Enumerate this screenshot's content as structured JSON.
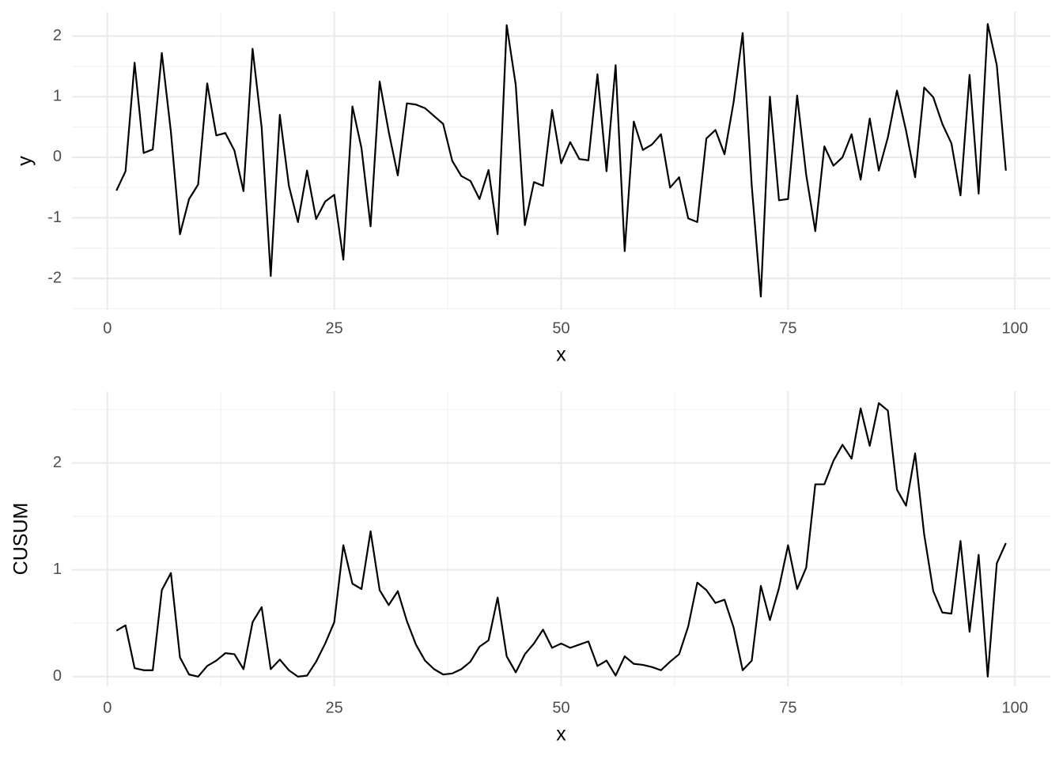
{
  "chart_data": [
    {
      "type": "line",
      "x_label": "x",
      "y_label": "y",
      "grid": true,
      "color": "#000000",
      "x": [
        1,
        2,
        3,
        4,
        5,
        6,
        7,
        8,
        9,
        10,
        11,
        12,
        13,
        14,
        15,
        16,
        17,
        18,
        19,
        20,
        21,
        22,
        23,
        24,
        25,
        26,
        27,
        28,
        29,
        30,
        31,
        32,
        33,
        34,
        35,
        36,
        37,
        38,
        39,
        40,
        41,
        42,
        43,
        44,
        45,
        46,
        47,
        48,
        49,
        50,
        51,
        52,
        53,
        54,
        55,
        56,
        57,
        58,
        59,
        60,
        61,
        62,
        63,
        64,
        65,
        66,
        67,
        68,
        69,
        70,
        71,
        72,
        73,
        74,
        75,
        76,
        77,
        78,
        79,
        80,
        81,
        82,
        83,
        84,
        85,
        86,
        87,
        88,
        89,
        90,
        91,
        92,
        93,
        94,
        95,
        96,
        97,
        98,
        99
      ],
      "values": [
        -0.55,
        -0.23,
        1.56,
        0.07,
        0.13,
        1.72,
        0.42,
        -1.27,
        -0.69,
        -0.45,
        1.22,
        0.36,
        0.4,
        0.11,
        -0.56,
        1.79,
        0.49,
        -1.96,
        0.7,
        -0.47,
        -1.07,
        -0.22,
        -1.02,
        -0.73,
        -0.62,
        -1.69,
        0.84,
        0.15,
        -1.14,
        1.25,
        0.42,
        -0.3,
        0.89,
        0.87,
        0.81,
        0.68,
        0.55,
        -0.06,
        -0.31,
        -0.39,
        -0.69,
        -0.21,
        -1.27,
        2.18,
        1.19,
        -1.12,
        -0.41,
        -0.47,
        0.78,
        -0.1,
        0.25,
        -0.03,
        -0.05,
        1.37,
        -0.23,
        1.52,
        -1.55,
        0.59,
        0.12,
        0.21,
        0.38,
        -0.5,
        -0.33,
        -1.01,
        -1.07,
        0.31,
        0.45,
        0.05,
        0.91,
        2.05,
        -0.47,
        -2.3,
        1.0,
        -0.71,
        -0.69,
        1.02,
        -0.29,
        -1.22,
        0.18,
        -0.14,
        0.0,
        0.38,
        -0.37,
        0.64,
        -0.22,
        0.33,
        1.1,
        0.44,
        -0.33,
        1.15,
        0.99,
        0.55,
        0.23,
        -0.63,
        1.36,
        -0.6,
        2.2,
        1.52,
        -0.22
      ],
      "xlim": [
        -3.9,
        103.9
      ],
      "xticks": [
        0,
        25,
        50,
        75,
        100
      ],
      "ylim": [
        -2.52,
        2.4
      ],
      "yticks": [
        -2,
        -1,
        0,
        1,
        2
      ]
    },
    {
      "type": "line",
      "x_label": "x",
      "y_label": "CUSUM",
      "grid": true,
      "color": "#000000",
      "x": [
        1,
        2,
        3,
        4,
        5,
        6,
        7,
        8,
        9,
        10,
        11,
        12,
        13,
        14,
        15,
        16,
        17,
        18,
        19,
        20,
        21,
        22,
        23,
        24,
        25,
        26,
        27,
        28,
        29,
        30,
        31,
        32,
        33,
        34,
        35,
        36,
        37,
        38,
        39,
        40,
        41,
        42,
        43,
        44,
        45,
        46,
        47,
        48,
        49,
        50,
        51,
        52,
        53,
        54,
        55,
        56,
        57,
        58,
        59,
        60,
        61,
        62,
        63,
        64,
        65,
        66,
        67,
        68,
        69,
        70,
        71,
        72,
        73,
        74,
        75,
        76,
        77,
        78,
        79,
        80,
        81,
        82,
        83,
        84,
        85,
        86,
        87,
        88,
        89,
        90,
        91,
        92,
        93,
        94,
        95,
        96,
        97,
        98,
        99
      ],
      "values": [
        0.43,
        0.48,
        0.08,
        0.06,
        0.06,
        0.81,
        0.97,
        0.18,
        0.02,
        0.0,
        0.1,
        0.15,
        0.22,
        0.21,
        0.07,
        0.51,
        0.65,
        0.07,
        0.16,
        0.06,
        0.0,
        0.01,
        0.14,
        0.31,
        0.51,
        1.23,
        0.87,
        0.82,
        1.36,
        0.81,
        0.67,
        0.8,
        0.52,
        0.3,
        0.15,
        0.07,
        0.02,
        0.03,
        0.07,
        0.14,
        0.28,
        0.34,
        0.74,
        0.19,
        0.04,
        0.21,
        0.31,
        0.44,
        0.27,
        0.31,
        0.27,
        0.3,
        0.33,
        0.1,
        0.15,
        0.01,
        0.19,
        0.12,
        0.11,
        0.09,
        0.06,
        0.14,
        0.21,
        0.47,
        0.88,
        0.81,
        0.69,
        0.72,
        0.46,
        0.06,
        0.15,
        0.85,
        0.53,
        0.83,
        1.23,
        0.82,
        1.02,
        1.8,
        1.8,
        2.02,
        2.17,
        2.04,
        2.51,
        2.16,
        2.56,
        2.49,
        1.75,
        1.6,
        2.09,
        1.33,
        0.8,
        0.6,
        0.59,
        1.27,
        0.42,
        1.14,
        0.0,
        1.06,
        1.25
      ],
      "xlim": [
        -3.9,
        103.9
      ],
      "xticks": [
        0,
        25,
        50,
        75,
        100
      ],
      "ylim": [
        -0.09,
        2.67
      ],
      "yticks": [
        0,
        1,
        2
      ]
    }
  ]
}
